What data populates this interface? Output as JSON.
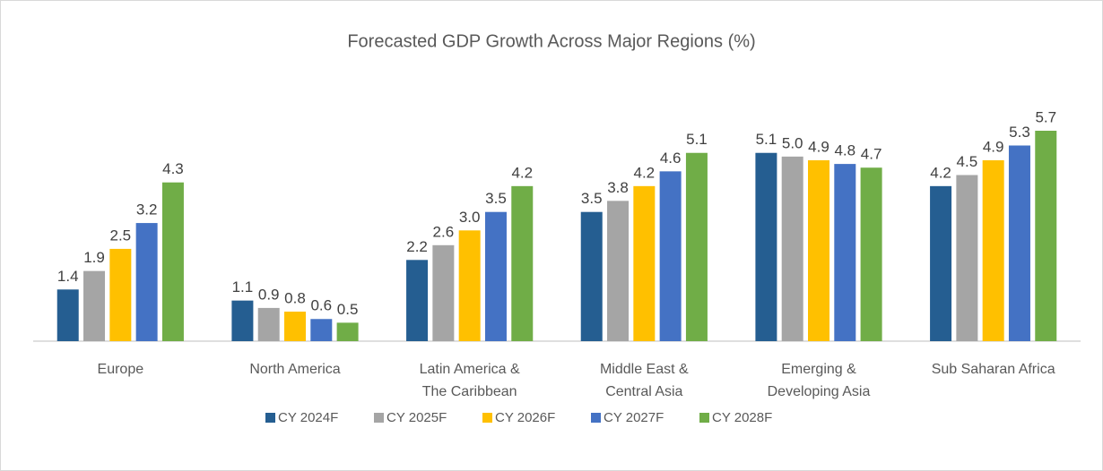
{
  "chart_data": {
    "type": "bar",
    "title": "Forecasted GDP Growth Across Major Regions (%)",
    "categories": [
      [
        "Europe"
      ],
      [
        "North America"
      ],
      [
        "Latin America &",
        "The Caribbean"
      ],
      [
        "Middle East &",
        "Central Asia"
      ],
      [
        "Emerging &",
        "Developing Asia"
      ],
      [
        "Sub Saharan Africa"
      ]
    ],
    "series": [
      {
        "name": "CY 2024F",
        "color": "#255e91",
        "values": [
          1.4,
          1.1,
          2.2,
          3.5,
          5.1,
          4.2
        ],
        "value_labels": [
          "1.4",
          "1.1",
          "2.2",
          "3.5",
          "5.1",
          "4.2"
        ]
      },
      {
        "name": "CY 2025F",
        "color": "#a5a5a5",
        "values": [
          1.9,
          0.9,
          2.6,
          3.8,
          5.0,
          4.5
        ],
        "value_labels": [
          "1.9",
          "0.9",
          "2.6",
          "3.8",
          "5.0",
          "4.5"
        ]
      },
      {
        "name": "CY 2026F",
        "color": "#ffc000",
        "values": [
          2.5,
          0.8,
          3.0,
          4.2,
          4.9,
          4.9
        ],
        "value_labels": [
          "2.5",
          "0.8",
          "3.0",
          "4.2",
          "4.9",
          "4.9"
        ]
      },
      {
        "name": "CY 2027F",
        "color": "#4472c4",
        "values": [
          3.2,
          0.6,
          3.5,
          4.6,
          4.8,
          5.3
        ],
        "value_labels": [
          "3.2",
          "0.6",
          "3.5",
          "4.6",
          "4.8",
          "5.3"
        ]
      },
      {
        "name": "CY 2028F",
        "color": "#70ad47",
        "values": [
          4.3,
          0.5,
          4.2,
          5.1,
          4.7,
          5.7
        ],
        "value_labels": [
          "4.3",
          "0.5",
          "4.2",
          "5.1",
          "4.7",
          "5.7"
        ]
      }
    ],
    "legend": "bottom"
  }
}
